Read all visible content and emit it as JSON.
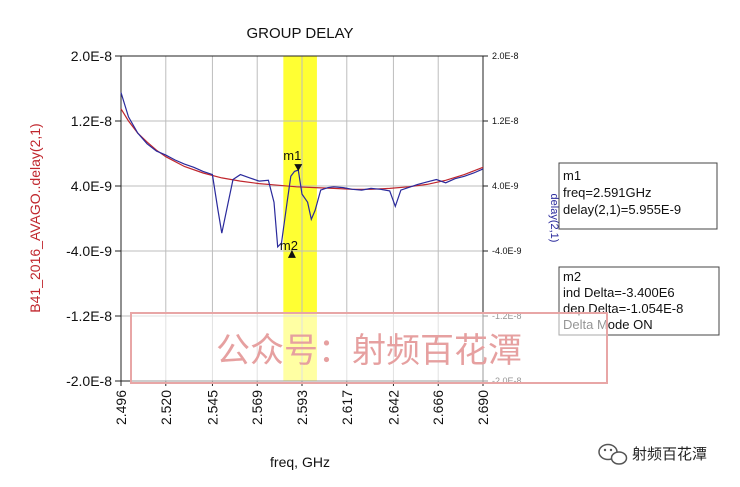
{
  "chart_data": {
    "type": "line",
    "title": "GROUP DELAY",
    "xlabel": "freq, GHz",
    "ylabel_left": "B41_2016_AVAGO..delay(2,1)",
    "ylabel_right": "delay(2,1)",
    "xlim": [
      2.496,
      2.69
    ],
    "ylim": [
      -2e-08,
      2e-08
    ],
    "x_ticks": [
      "2.496",
      "2.520",
      "2.545",
      "2.569",
      "2.593",
      "2.617",
      "2.642",
      "2.666",
      "2.690"
    ],
    "x_tick_values": [
      2.496,
      2.52,
      2.545,
      2.569,
      2.593,
      2.617,
      2.642,
      2.666,
      2.69
    ],
    "y_ticks_left": [
      "2.0E-8",
      "1.2E-8",
      "4.0E-9",
      "-4.0E-9",
      "-1.2E-8",
      "-2.0E-8"
    ],
    "y_ticks_right": [
      "2.0E-8",
      "1.2E-8",
      "4.0E-9",
      "-4.0E-9",
      "-1.2E-8",
      "-2.0E-8"
    ],
    "y_tick_values": [
      2e-08,
      1.2e-08,
      4e-09,
      -4e-09,
      -1.2e-08,
      -2e-08
    ],
    "grid": true,
    "highlight_band": {
      "x": [
        2.583,
        2.601
      ],
      "color": "#ffff33"
    },
    "series": [
      {
        "color": "#c0262d",
        "x": [
          2.496,
          2.5,
          2.505,
          2.51,
          2.515,
          2.52,
          2.53,
          2.54,
          2.55,
          2.56,
          2.57,
          2.58,
          2.59,
          2.6,
          2.61,
          2.62,
          2.63,
          2.64,
          2.65,
          2.66,
          2.67,
          2.68,
          2.69
        ],
        "y": [
          1.35e-08,
          1.2e-08,
          1.05e-08,
          9.4e-09,
          8.4e-09,
          7.6e-09,
          6.4e-09,
          5.6e-09,
          5e-09,
          4.6e-09,
          4.3e-09,
          4.1e-09,
          3.9e-09,
          3.8e-09,
          3.7e-09,
          3.6e-09,
          3.6e-09,
          3.7e-09,
          3.9e-09,
          4.2e-09,
          4.7e-09,
          5.4e-09,
          6.3e-09
        ]
      },
      {
        "color": "#2a2a9c",
        "x": [
          2.496,
          2.5,
          2.505,
          2.51,
          2.515,
          2.52,
          2.525,
          2.53,
          2.535,
          2.54,
          2.545,
          2.548,
          2.55,
          2.553,
          2.556,
          2.56,
          2.565,
          2.57,
          2.575,
          2.578,
          2.58,
          2.582,
          2.585,
          2.587,
          2.589,
          2.591,
          2.593,
          2.596,
          2.598,
          2.6,
          2.603,
          2.607,
          2.61,
          2.615,
          2.62,
          2.625,
          2.63,
          2.635,
          2.64,
          2.643,
          2.646,
          2.65,
          2.655,
          2.66,
          2.665,
          2.67,
          2.675,
          2.68,
          2.685,
          2.69
        ],
        "y": [
          1.55e-08,
          1.25e-08,
          1.05e-08,
          9.2e-09,
          8.3e-09,
          7.8e-09,
          7.2e-09,
          6.7e-09,
          6.3e-09,
          5.8e-09,
          5.4e-09,
          1e-09,
          -1.8e-09,
          1.5e-09,
          4.8e-09,
          5.4e-09,
          5e-09,
          4.6e-09,
          4.7e-09,
          2e-09,
          -3.5e-09,
          -3e-09,
          2e-09,
          5.2e-09,
          5.8e-09,
          5.955e-09,
          3e-09,
          2e-09,
          -1e-10,
          1e-09,
          3.5e-09,
          3.8e-09,
          3.9e-09,
          3.8e-09,
          3.6e-09,
          3.5e-09,
          3.7e-09,
          3.6e-09,
          3.4e-09,
          1.5e-09,
          3.5e-09,
          3.8e-09,
          4.2e-09,
          4.5e-09,
          4.8e-09,
          4.4e-09,
          4.9e-09,
          5.2e-09,
          5.6e-09,
          6.1e-09
        ]
      }
    ],
    "markers": [
      {
        "name": "m1",
        "x": 2.591,
        "y": 5.955e-09
      },
      {
        "name": "m2",
        "x": 2.5876,
        "y": -4.6e-09
      }
    ]
  },
  "marker_boxes": {
    "m1": [
      "m1",
      "freq=2.591GHz",
      "delay(2,1)=5.955E-9"
    ],
    "m2": [
      "m2",
      "ind Delta=-3.400E6",
      "dep Delta=-1.054E-8",
      "Delta Mode ON"
    ]
  },
  "watermark": {
    "text": "公众号：射频百花潭",
    "color": "#e6a0a0"
  },
  "logo": {
    "text": "射频百花潭",
    "icon": "wechat-icon"
  }
}
